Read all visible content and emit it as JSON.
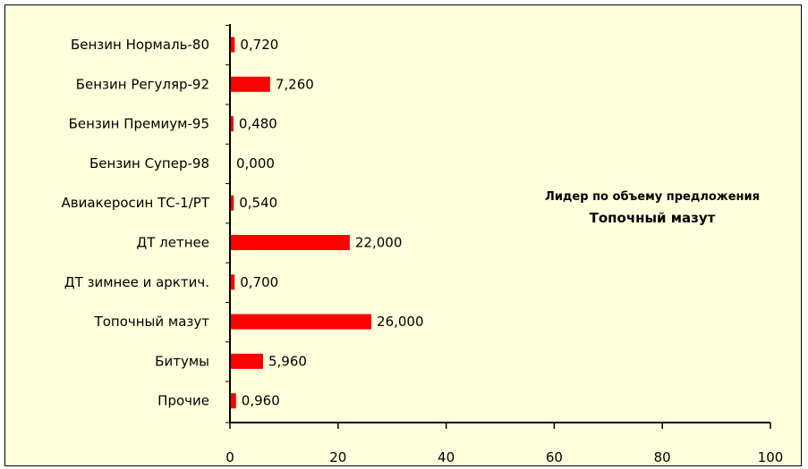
{
  "chart_data": {
    "type": "bar",
    "orientation": "horizontal",
    "categories": [
      "Бензин Нормаль-80",
      "Бензин Регуляр-92",
      "Бензин Премиум-95",
      "Бензин Супер-98",
      "Авиакеросин ТС-1/РТ",
      "ДТ летнее",
      "ДТ зимнее и арктич.",
      "Топочный мазут",
      "Битумы",
      "Прочие"
    ],
    "values": [
      0.72,
      7.26,
      0.48,
      0.0,
      0.54,
      22.0,
      0.7,
      26.0,
      5.96,
      0.96
    ],
    "value_labels": [
      "0,720",
      "7,260",
      "0,480",
      "0,000",
      "0,540",
      "22,000",
      "0,700",
      "26,000",
      "5,960",
      "0,960"
    ],
    "xlim": [
      0,
      100
    ],
    "xticks": [
      0,
      20,
      40,
      60,
      80,
      100
    ],
    "grid": false,
    "bar_color": "#ff0000",
    "background_color": "#fffedc"
  },
  "annotation": {
    "title": "Лидер по объему предложения",
    "value": "Топочный мазут"
  }
}
